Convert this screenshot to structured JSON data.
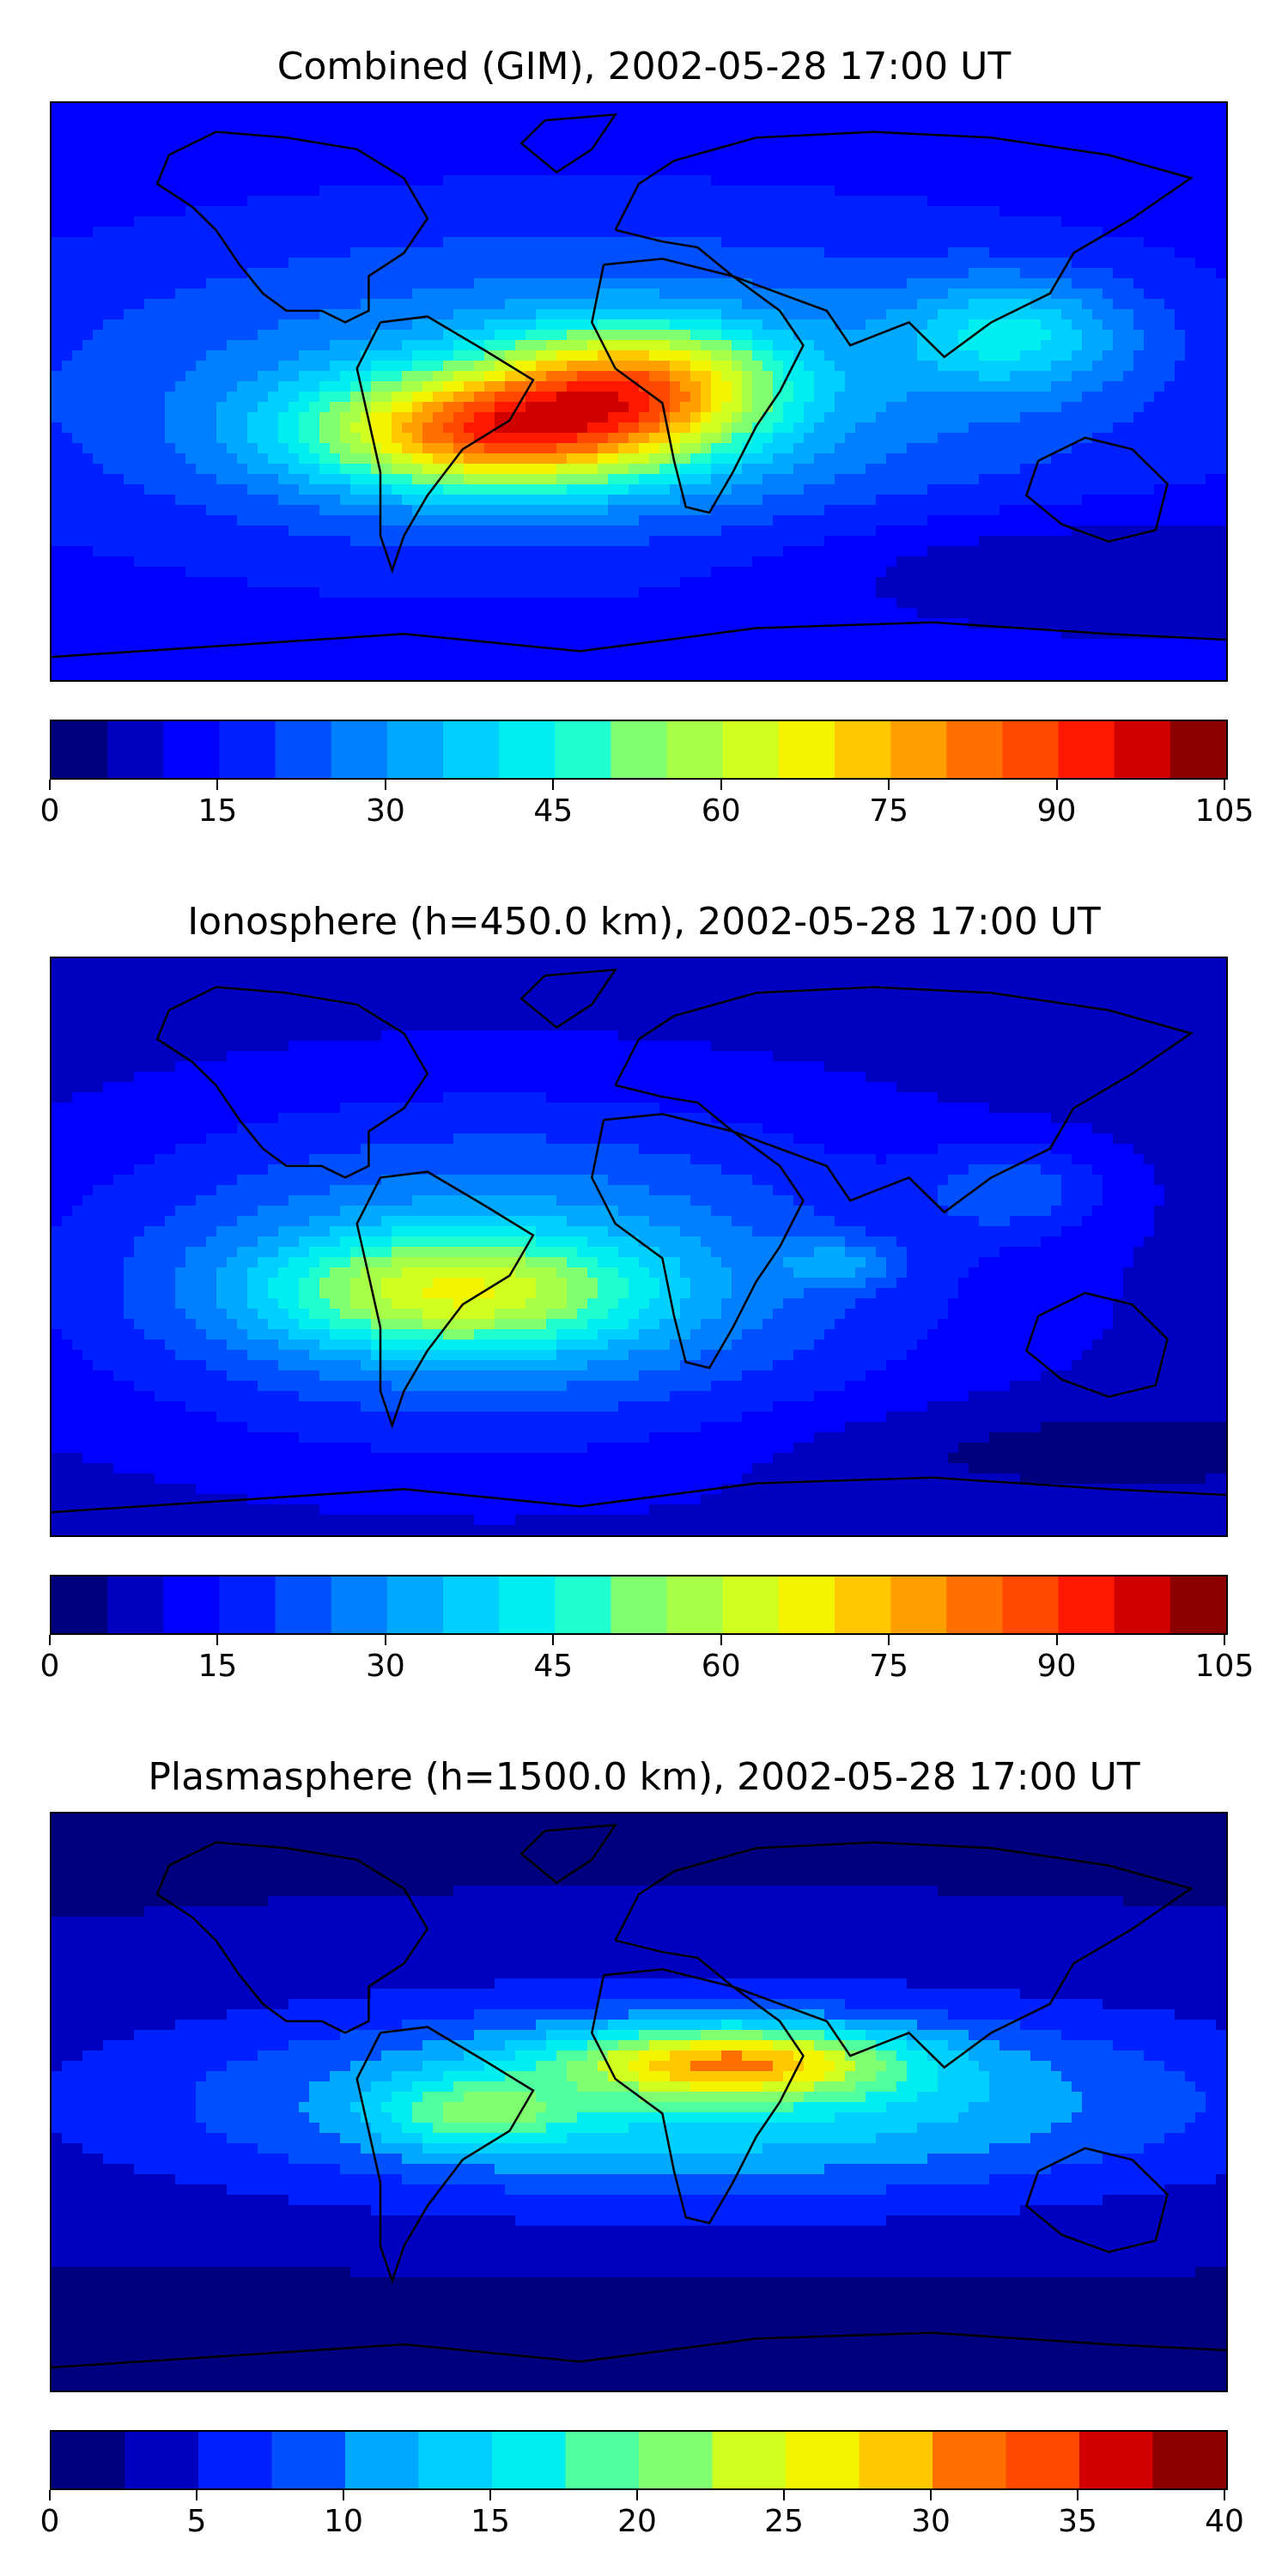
{
  "panels": [
    {
      "title": "Combined (GIM), 2002-05-28 17:00 UT",
      "colorbar": {
        "min": 0,
        "max": 105,
        "levels": 21,
        "ticks": [
          "0",
          "15",
          "30",
          "45",
          "60",
          "75",
          "90",
          "105"
        ]
      },
      "field": "combined"
    },
    {
      "title": "Ionosphere  (h=450.0 km), 2002-05-28 17:00 UT",
      "colorbar": {
        "min": 0,
        "max": 105,
        "levels": 21,
        "ticks": [
          "0",
          "15",
          "30",
          "45",
          "60",
          "75",
          "90",
          "105"
        ]
      },
      "field": "ionosphere"
    },
    {
      "title": "Plasmasphere (h=1500.0 km), 2002-05-28 17:00 UT",
      "colorbar": {
        "min": 0,
        "max": 40,
        "levels": 16,
        "ticks": [
          "0",
          "5",
          "10",
          "15",
          "20",
          "25",
          "30",
          "35",
          "40"
        ]
      },
      "field": "plasmasphere"
    }
  ],
  "colormap": [
    "#00007f",
    "#0000c0",
    "#0000ff",
    "#0020ff",
    "#0050ff",
    "#0080ff",
    "#00a8ff",
    "#00d0ff",
    "#00eef0",
    "#20ffd0",
    "#50ff9f",
    "#80ff70",
    "#a8ff48",
    "#d0ff20",
    "#f4f400",
    "#ffc800",
    "#ffa000",
    "#ff7000",
    "#ff4800",
    "#ff1800",
    "#d00000",
    "#8b0000"
  ]
}
